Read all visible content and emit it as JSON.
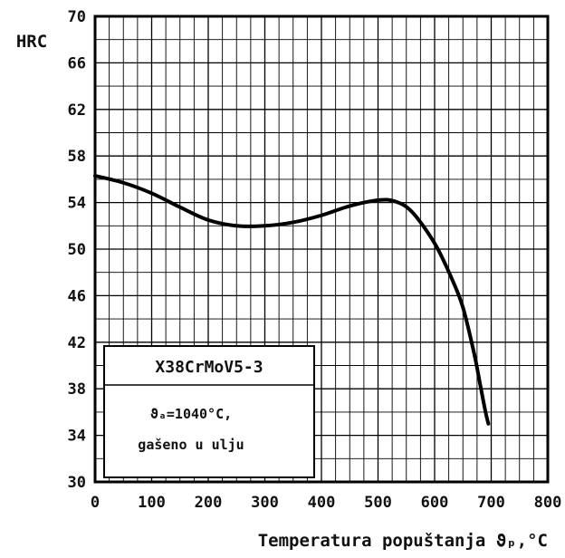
{
  "chart_data": {
    "type": "line",
    "ylabel": "HRC",
    "xlabel": "Temperatura popuštanja ϑₚ,°C",
    "xlim": [
      0,
      800
    ],
    "ylim": [
      30,
      70
    ],
    "x_ticks": [
      "0",
      "100",
      "200",
      "300",
      "400",
      "500",
      "600",
      "700",
      "800"
    ],
    "y_ticks": [
      "30",
      "34",
      "38",
      "42",
      "46",
      "50",
      "54",
      "58",
      "62",
      "66",
      "70"
    ],
    "grid": true,
    "series": [
      {
        "x": [
          0,
          50,
          100,
          150,
          200,
          250,
          300,
          350,
          400,
          450,
          500,
          530,
          560,
          600,
          630,
          650,
          670,
          680,
          690,
          695
        ],
        "values": [
          56.3,
          55.7,
          54.8,
          53.6,
          52.5,
          52.0,
          52.0,
          52.3,
          52.9,
          53.7,
          54.2,
          54.1,
          53.2,
          50.5,
          47.5,
          45.0,
          41.0,
          38.5,
          36.0,
          35.0
        ]
      }
    ],
    "legend": {
      "title": "X38CrMoV5-3",
      "line1": "ϑₐ=1040°C,",
      "line2": "gašeno u ulju"
    }
  }
}
